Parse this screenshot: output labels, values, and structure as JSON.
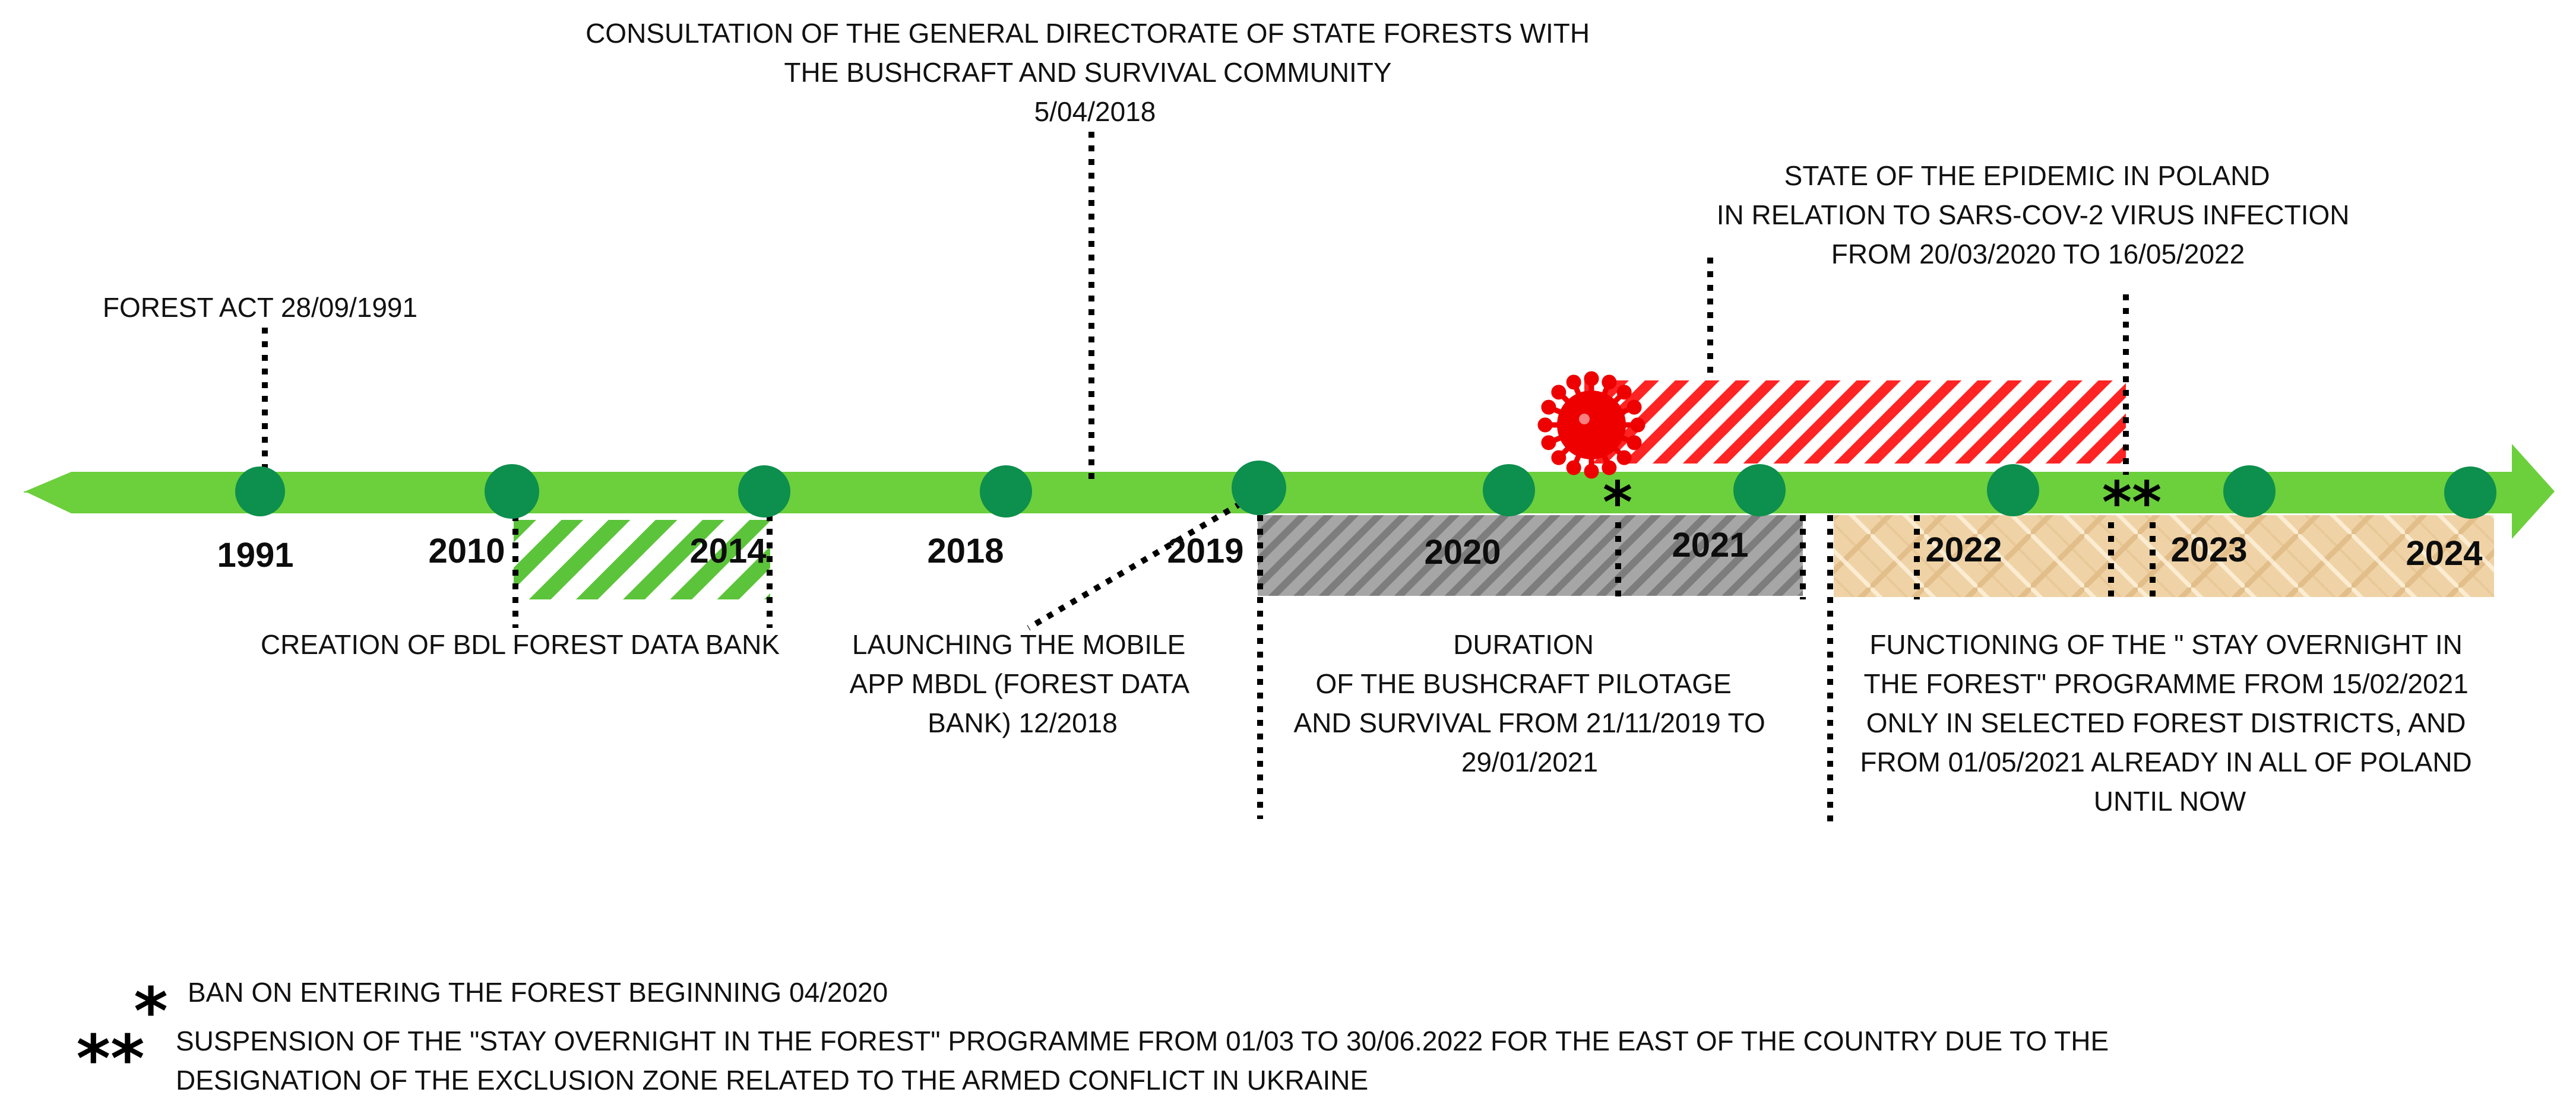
{
  "timeline": {
    "colors": {
      "arrow": "#6ccf3c",
      "node": "#0d8f4d",
      "bdl_hatch": "#5cc43a",
      "pilot_hatch": "#8c8c8c",
      "overnight_fill": "#efd3a8",
      "epidemic_hatch": "#ff2020",
      "virus": "#ee0000"
    },
    "years": [
      "1991",
      "2010",
      "2014",
      "2018",
      "2019",
      "2020",
      "2021",
      "2022",
      "2023",
      "2024"
    ],
    "events": {
      "forest_act": "FOREST ACT 28/09/1991",
      "consultation": [
        "CONSULTATION OF THE  GENERAL DIRECTORATE OF STATE FORESTS WITH",
        "THE BUSHCRAFT AND SURVIVAL COMMUNITY",
        "5/04/2018"
      ],
      "epidemic": [
        "STATE OF THE EPIDEMIC IN POLAND",
        "IN RELATION TO SARS-COV-2 VIRUS INFECTION",
        "FROM 20/03/2020 TO 16/05/2022"
      ],
      "bdl": "CREATION OF BDL FOREST DATA BANK",
      "mobile_app": [
        "LAUNCHING THE MOBILE",
        "APP MBDL (FOREST DATA",
        "BANK) 12/2018"
      ],
      "pilotage": [
        "DURATION",
        "OF THE BUSHCRAFT PILOTAGE",
        "AND SURVIVAL FROM 21/11/2019 TO",
        "29/01/2021"
      ],
      "overnight": [
        "FUNCTIONING OF THE \" STAY OVERNIGHT IN",
        "THE FOREST\" PROGRAMME FROM 15/02/2021",
        "ONLY IN SELECTED FOREST DISTRICTS, AND",
        "FROM 01/05/2021 ALREADY IN ALL OF POLAND",
        "UNTIL NOW"
      ]
    },
    "markers": {
      "single": "*",
      "double": "**"
    }
  },
  "footnotes": {
    "single_symbol": "*",
    "single_text": "BAN ON ENTERING THE FOREST BEGINNING 04/2020",
    "double_symbol": "**",
    "double_text": [
      "SUSPENSION OF THE \"STAY OVERNIGHT IN THE FOREST\" PROGRAMME  FROM 01/03 TO 30/06.2022 FOR THE EAST OF THE COUNTRY DUE TO THE",
      "DESIGNATION OF THE EXCLUSION ZONE RELATED TO THE ARMED CONFLICT IN UKRAINE"
    ]
  }
}
